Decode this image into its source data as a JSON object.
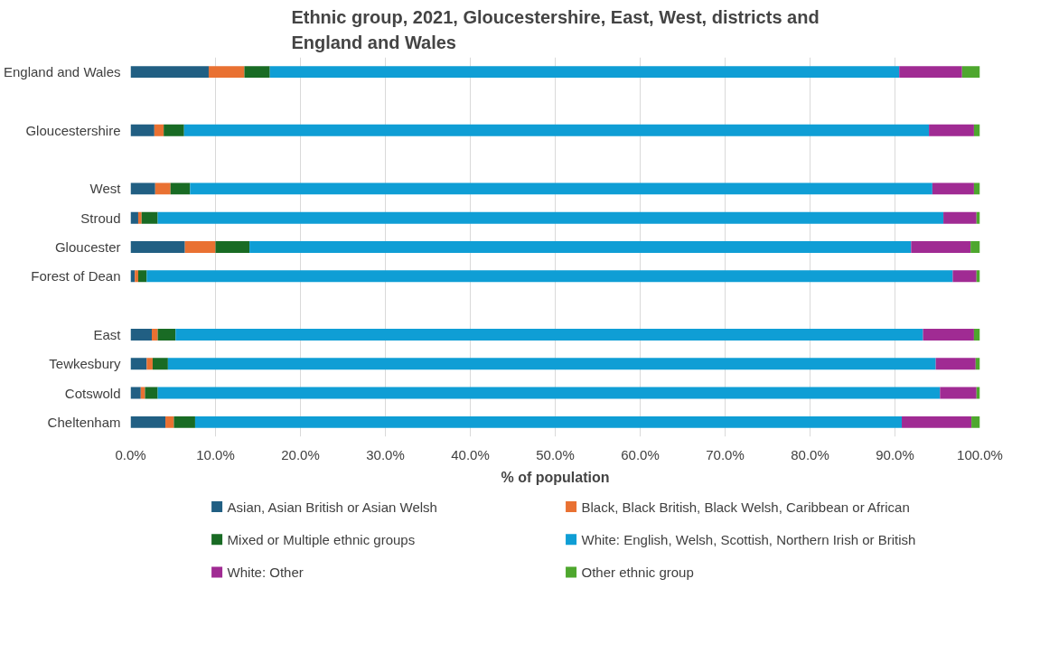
{
  "chart_data": {
    "type": "bar",
    "orientation": "horizontal",
    "stacked": true,
    "title": "Ethnic group, 2021, Gloucestershire, East, West, districts and England and Wales",
    "xlabel": "% of population",
    "categories": [
      "England and Wales",
      null,
      "Gloucestershire",
      null,
      "West",
      "Stroud",
      "Gloucester",
      "Forest of Dean",
      null,
      "East",
      "Tewkesbury",
      "Cotswold",
      "Cheltenham"
    ],
    "series": [
      {
        "name": "Asian, Asian British or Asian Welsh",
        "color": "#215f83",
        "values": [
          9.2,
          null,
          2.8,
          null,
          2.9,
          0.9,
          6.4,
          0.5,
          null,
          2.5,
          1.9,
          1.2,
          4.1
        ]
      },
      {
        "name": "Black, Black British, Black Welsh, Caribbean or African",
        "color": "#e97132",
        "values": [
          4.2,
          null,
          1.1,
          null,
          1.8,
          0.4,
          3.6,
          0.4,
          null,
          0.7,
          0.7,
          0.5,
          1.0
        ]
      },
      {
        "name": "Mixed or Multiple ethnic groups",
        "color": "#196b24",
        "values": [
          3.0,
          null,
          2.4,
          null,
          2.3,
          1.9,
          4.0,
          1.0,
          null,
          2.1,
          1.8,
          1.5,
          2.5
        ]
      },
      {
        "name": "White: English, Welsh, Scottish, Northern Irish or British",
        "color": "#0f9ed5",
        "values": [
          74.1,
          null,
          87.7,
          null,
          87.4,
          92.5,
          77.9,
          94.9,
          null,
          88.0,
          90.4,
          92.1,
          83.2
        ]
      },
      {
        "name": "White: Other",
        "color": "#a02b93",
        "values": [
          7.4,
          null,
          5.3,
          null,
          4.9,
          3.9,
          7.0,
          2.8,
          null,
          6.0,
          4.7,
          4.3,
          8.2
        ]
      },
      {
        "name": "Other ethnic group",
        "color": "#4ea72e",
        "values": [
          2.1,
          null,
          0.7,
          null,
          0.7,
          0.4,
          1.1,
          0.4,
          null,
          0.7,
          0.5,
          0.4,
          1.0
        ]
      }
    ],
    "xlim": [
      0,
      100
    ],
    "xticks": [
      {
        "value": 0,
        "label": "0.0%"
      },
      {
        "value": 10,
        "label": "10.0%"
      },
      {
        "value": 20,
        "label": "20.0%"
      },
      {
        "value": 30,
        "label": "30.0%"
      },
      {
        "value": 40,
        "label": "40.0%"
      },
      {
        "value": 50,
        "label": "50.0%"
      },
      {
        "value": 60,
        "label": "60.0%"
      },
      {
        "value": 70,
        "label": "70.0%"
      },
      {
        "value": 80,
        "label": "80.0%"
      },
      {
        "value": 90,
        "label": "90.0%"
      },
      {
        "value": 100,
        "label": "100.0%"
      }
    ],
    "grid": "x",
    "legend": "bottom"
  }
}
